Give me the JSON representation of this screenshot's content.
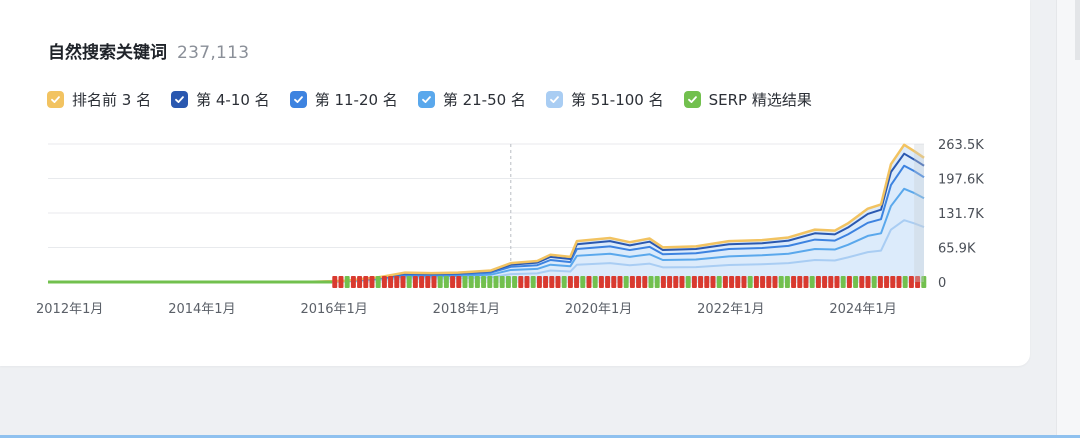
{
  "header": {
    "title": "自然搜索关键词",
    "count": "237,113"
  },
  "legend": [
    {
      "label": "排名前 3 名",
      "color": "#f2c361",
      "checked": true
    },
    {
      "label": "第 4-10 名",
      "color": "#2a58b0",
      "checked": true
    },
    {
      "label": "第 11-20 名",
      "color": "#3d83e0",
      "checked": true
    },
    {
      "label": "第 21-50 名",
      "color": "#5aa8ec",
      "checked": true
    },
    {
      "label": "第 51-100 名",
      "color": "#a9cdf3",
      "checked": true
    },
    {
      "label": "SERP 精选结果",
      "color": "#72c04e",
      "checked": true
    }
  ],
  "chart_data": {
    "type": "area",
    "title": "自然搜索关键词",
    "x_ticks": [
      "2012年1月",
      "2014年1月",
      "2016年1月",
      "2018年1月",
      "2020年1月",
      "2022年1月",
      "2024年1月"
    ],
    "y_ticks": [
      "263.5K",
      "197.6K",
      "131.7K",
      "65.9K",
      "0"
    ],
    "ylim": [
      0,
      263500
    ],
    "xlim": [
      2012.0,
      2025.25
    ],
    "grid": true,
    "legend_position": "top",
    "cursor_x": 2019.0,
    "stacked_totals": [
      {
        "x": 2012.0,
        "top3": 0,
        "top10": 0,
        "top20": 0,
        "top50": 0,
        "top100": 0
      },
      {
        "x": 2016.0,
        "top3": 500,
        "top10": 400,
        "top20": 300,
        "top50": 200,
        "top100": 100
      },
      {
        "x": 2016.5,
        "top3": 2500,
        "top10": 2200,
        "top20": 1800,
        "top50": 1400,
        "top100": 900
      },
      {
        "x": 2017.0,
        "top3": 9000,
        "top10": 8500,
        "top20": 7500,
        "top50": 6000,
        "top100": 4000
      },
      {
        "x": 2017.4,
        "top3": 18000,
        "top10": 16500,
        "top20": 14000,
        "top50": 11000,
        "top100": 7000
      },
      {
        "x": 2017.8,
        "top3": 17000,
        "top10": 15500,
        "top20": 13500,
        "top50": 10500,
        "top100": 6500
      },
      {
        "x": 2018.2,
        "top3": 18000,
        "top10": 16500,
        "top20": 14500,
        "top50": 11500,
        "top100": 7000
      },
      {
        "x": 2018.7,
        "top3": 22000,
        "top10": 20500,
        "top20": 18000,
        "top50": 14000,
        "top100": 9000
      },
      {
        "x": 2019.0,
        "top3": 36000,
        "top10": 33000,
        "top20": 29000,
        "top50": 23000,
        "top100": 15000
      },
      {
        "x": 2019.4,
        "top3": 40000,
        "top10": 37000,
        "top20": 32000,
        "top50": 25000,
        "top100": 16500
      },
      {
        "x": 2019.6,
        "top3": 52000,
        "top10": 48000,
        "top20": 42000,
        "top50": 33000,
        "top100": 22000
      },
      {
        "x": 2019.9,
        "top3": 48000,
        "top10": 44000,
        "top20": 38000,
        "top50": 30000,
        "top100": 20000
      },
      {
        "x": 2020.0,
        "top3": 78000,
        "top10": 72000,
        "top20": 63000,
        "top50": 50000,
        "top100": 33000
      },
      {
        "x": 2020.5,
        "top3": 84000,
        "top10": 78000,
        "top20": 68000,
        "top50": 54000,
        "top100": 36000
      },
      {
        "x": 2020.8,
        "top3": 76000,
        "top10": 70000,
        "top20": 61000,
        "top50": 48000,
        "top100": 32000
      },
      {
        "x": 2021.1,
        "top3": 83000,
        "top10": 77000,
        "top20": 67000,
        "top50": 53000,
        "top100": 35000
      },
      {
        "x": 2021.3,
        "top3": 66000,
        "top10": 61000,
        "top20": 53000,
        "top50": 42000,
        "top100": 28000
      },
      {
        "x": 2021.8,
        "top3": 68000,
        "top10": 63000,
        "top20": 55000,
        "top50": 43000,
        "top100": 28500
      },
      {
        "x": 2022.3,
        "top3": 78000,
        "top10": 72000,
        "top20": 63000,
        "top50": 49000,
        "top100": 32500
      },
      {
        "x": 2022.8,
        "top3": 80000,
        "top10": 74000,
        "top20": 65000,
        "top50": 51000,
        "top100": 34000
      },
      {
        "x": 2023.2,
        "top3": 85000,
        "top10": 79000,
        "top20": 69000,
        "top50": 54000,
        "top100": 36000
      },
      {
        "x": 2023.6,
        "top3": 100000,
        "top10": 93000,
        "top20": 81000,
        "top50": 63000,
        "top100": 42000
      },
      {
        "x": 2023.9,
        "top3": 98000,
        "top10": 91000,
        "top20": 79000,
        "top50": 62000,
        "top100": 41000
      },
      {
        "x": 2024.1,
        "top3": 112000,
        "top10": 104000,
        "top20": 91000,
        "top50": 71000,
        "top100": 47000
      },
      {
        "x": 2024.4,
        "top3": 140000,
        "top10": 130000,
        "top20": 113000,
        "top50": 88000,
        "top100": 57000
      },
      {
        "x": 2024.6,
        "top3": 148000,
        "top10": 138000,
        "top20": 120000,
        "top50": 93000,
        "top100": 60000
      },
      {
        "x": 2024.75,
        "top3": 225000,
        "top10": 210000,
        "top20": 185000,
        "top50": 145000,
        "top100": 100000
      },
      {
        "x": 2024.95,
        "top3": 262000,
        "top10": 245000,
        "top20": 222000,
        "top50": 178000,
        "top100": 118000
      },
      {
        "x": 2025.1,
        "top3": 250000,
        "top10": 234000,
        "top20": 212000,
        "top50": 170000,
        "top100": 112000
      },
      {
        "x": 2025.25,
        "top3": 237113,
        "top10": 222000,
        "top20": 200000,
        "top50": 160000,
        "top100": 105000
      }
    ],
    "serp_features_from": 2016.3,
    "serp_features_to": 2025.25
  }
}
